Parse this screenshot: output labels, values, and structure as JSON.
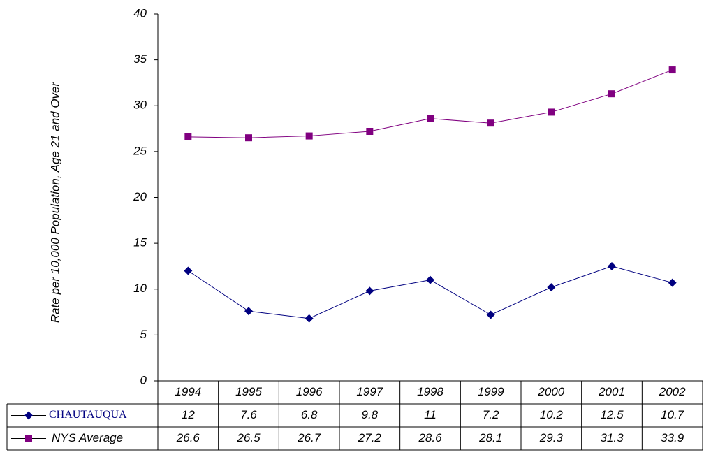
{
  "chart_data": {
    "type": "line",
    "y_label": "Rate per 10,000 Population, Age 21 and Over",
    "categories": [
      "1994",
      "1995",
      "1996",
      "1997",
      "1998",
      "1999",
      "2000",
      "2001",
      "2002"
    ],
    "series": [
      {
        "name": "CHAUTAUQUA",
        "color": "#000080",
        "marker": "diamond",
        "values": [
          12,
          7.6,
          6.8,
          9.8,
          11,
          7.2,
          10.2,
          12.5,
          10.7
        ]
      },
      {
        "name": "NYS Average",
        "color": "#800080",
        "marker": "square",
        "values": [
          26.6,
          26.5,
          26.7,
          27.2,
          28.6,
          28.1,
          29.3,
          31.3,
          33.9
        ]
      }
    ],
    "ylim": [
      0,
      40
    ],
    "yticks": [
      0,
      5,
      10,
      15,
      20,
      25,
      30,
      35,
      40
    ],
    "grid": false,
    "data_table": true
  }
}
